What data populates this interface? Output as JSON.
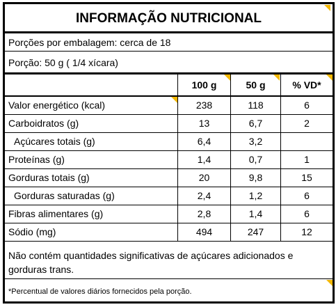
{
  "title": "INFORMAÇÃO NUTRICIONAL",
  "servings_per_package": "Porções por embalagem: cerca de 18",
  "serving_size": "Porção: 50 g ( 1/4 xícara)",
  "table": {
    "headers": [
      "",
      "100 g",
      "50 g",
      "% VD*"
    ],
    "rows": [
      {
        "name": "Valor energético (kcal)",
        "per100": "238",
        "per50": "118",
        "vd": "6"
      },
      {
        "name": "Carboidratos (g)",
        "per100": "13",
        "per50": "6,7",
        "vd": "2"
      },
      {
        "name": "Açúcares totais (g)",
        "per100": "6,4",
        "per50": "3,2",
        "vd": ""
      },
      {
        "name": "Proteínas (g)",
        "per100": "1,4",
        "per50": "0,7",
        "vd": "1"
      },
      {
        "name": "Gorduras totais (g)",
        "per100": "20",
        "per50": "9,8",
        "vd": "15"
      },
      {
        "name": "Gorduras saturadas (g)",
        "per100": "2,4",
        "per50": "1,2",
        "vd": "6"
      },
      {
        "name": "Fibras alimentares (g)",
        "per100": "2,8",
        "per50": "1,4",
        "vd": "6"
      },
      {
        "name": "Sódio (mg)",
        "per100": "494",
        "per50": "247",
        "vd": "12"
      }
    ]
  },
  "footnote": "Não contém quantidades significativas de açúcares adicionados e gorduras trans.",
  "percent_note": "*Percentual de valores diários fornecidos pela porção.",
  "colors": {
    "accent_corner": "#f2b705",
    "border": "#000000"
  }
}
